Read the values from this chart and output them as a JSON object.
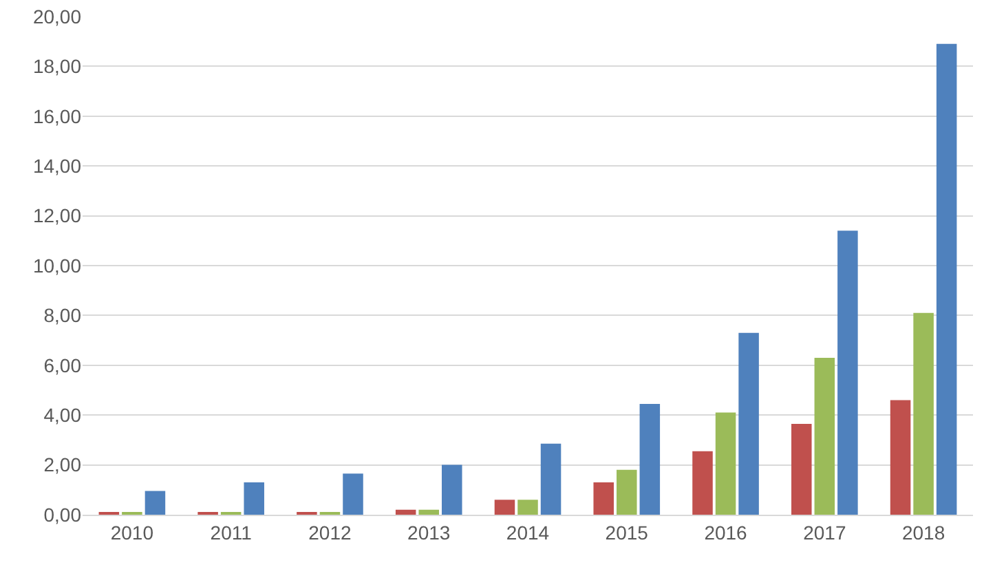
{
  "chart_data": {
    "type": "bar",
    "categories": [
      "2010",
      "2011",
      "2012",
      "2013",
      "2014",
      "2015",
      "2016",
      "2017",
      "2018"
    ],
    "series": [
      {
        "color": "#c0504d",
        "values": [
          0.1,
          0.1,
          0.1,
          0.2,
          0.6,
          1.3,
          2.55,
          3.65,
          4.6
        ]
      },
      {
        "color": "#9bbb59",
        "values": [
          0.1,
          0.1,
          0.1,
          0.2,
          0.6,
          1.8,
          4.1,
          6.3,
          8.1
        ]
      },
      {
        "color": "#4f81bd",
        "values": [
          0.95,
          1.3,
          1.65,
          2.0,
          2.85,
          4.45,
          7.3,
          11.4,
          18.9
        ]
      }
    ],
    "ylim": [
      0,
      20
    ],
    "yticks": [
      {
        "value": 0,
        "label": "0,00"
      },
      {
        "value": 2,
        "label": "2,00"
      },
      {
        "value": 4,
        "label": "4,00"
      },
      {
        "value": 6,
        "label": "6,00"
      },
      {
        "value": 8,
        "label": "8,00"
      },
      {
        "value": 10,
        "label": "10,00"
      },
      {
        "value": 12,
        "label": "12,00"
      },
      {
        "value": 14,
        "label": "14,00"
      },
      {
        "value": 16,
        "label": "16,00"
      },
      {
        "value": 18,
        "label": "18,00"
      },
      {
        "value": 20,
        "label": "20,00"
      }
    ],
    "grid": "y",
    "legend": false
  }
}
